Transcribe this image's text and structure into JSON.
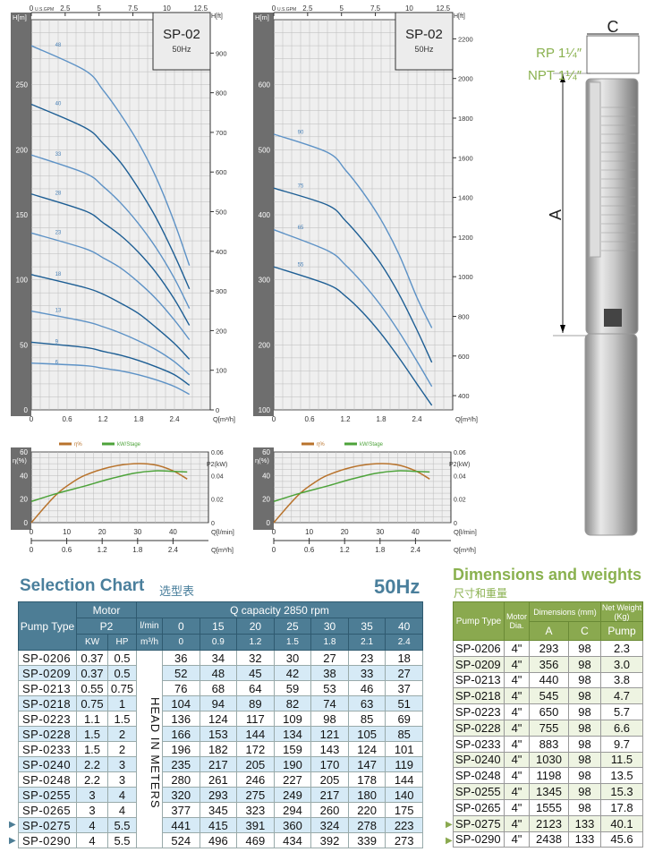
{
  "chart_data": [
    {
      "type": "line",
      "title": "SP-02",
      "subtitle": "50Hz",
      "xlabel": "Q[m³/h]",
      "ylabel": "H[m]",
      "y2label": "H[ft]",
      "x2label": "U.S.GPM",
      "xlim": [
        0,
        3
      ],
      "ylim": [
        0,
        300
      ],
      "xticks": [
        0,
        0.6,
        1.2,
        1.8,
        2.4
      ],
      "yticks": [
        0,
        50,
        100,
        150,
        200,
        250
      ],
      "y2ticks": [
        0,
        100,
        200,
        300,
        400,
        500,
        600,
        700,
        800,
        900
      ],
      "x2ticks": [
        0,
        2.5,
        5,
        7.5,
        10,
        12.5
      ],
      "grid": true,
      "series": [
        {
          "name": "48",
          "x": [
            0,
            0.9,
            1.2,
            1.5,
            1.8,
            2.1,
            2.4,
            2.65
          ],
          "y": [
            280,
            261,
            246,
            227,
            205,
            178,
            144,
            111
          ]
        },
        {
          "name": "40",
          "x": [
            0,
            0.9,
            1.2,
            1.5,
            1.8,
            2.1,
            2.4,
            2.65
          ],
          "y": [
            235,
            217,
            205,
            190,
            170,
            147,
            119,
            93
          ]
        },
        {
          "name": "33",
          "x": [
            0,
            0.9,
            1.2,
            1.5,
            1.8,
            2.1,
            2.4,
            2.65
          ],
          "y": [
            196,
            182,
            172,
            159,
            143,
            124,
            101,
            78
          ]
        },
        {
          "name": "28",
          "x": [
            0,
            0.9,
            1.2,
            1.5,
            1.8,
            2.1,
            2.4,
            2.65
          ],
          "y": [
            166,
            153,
            144,
            134,
            121,
            105,
            85,
            65
          ]
        },
        {
          "name": "23",
          "x": [
            0,
            0.9,
            1.2,
            1.5,
            1.8,
            2.1,
            2.4,
            2.65
          ],
          "y": [
            136,
            124,
            117,
            109,
            98,
            85,
            69,
            54
          ]
        },
        {
          "name": "18",
          "x": [
            0,
            0.9,
            1.2,
            1.5,
            1.8,
            2.1,
            2.4,
            2.65
          ],
          "y": [
            104,
            94,
            89,
            82,
            74,
            63,
            51,
            39
          ]
        },
        {
          "name": "13",
          "x": [
            0,
            0.9,
            1.2,
            1.5,
            1.8,
            2.1,
            2.4,
            2.65
          ],
          "y": [
            76,
            68,
            64,
            59,
            53,
            46,
            37,
            27
          ]
        },
        {
          "name": "9",
          "x": [
            0,
            0.9,
            1.2,
            1.5,
            1.8,
            2.1,
            2.4,
            2.65
          ],
          "y": [
            52,
            48,
            45,
            42,
            38,
            33,
            27,
            19
          ]
        },
        {
          "name": "6",
          "x": [
            0,
            0.9,
            1.2,
            1.5,
            1.8,
            2.1,
            2.4,
            2.65
          ],
          "y": [
            36,
            34,
            32,
            30,
            27,
            23,
            18,
            12
          ]
        }
      ]
    },
    {
      "type": "line",
      "title": "SP-02",
      "subtitle": "50Hz",
      "xlabel": "Q[m³/h]",
      "ylabel": "H[m]",
      "y2label": "H[ft]",
      "x2label": "U.S.GPM",
      "xlim": [
        0,
        3
      ],
      "ylim": [
        100,
        700
      ],
      "xticks": [
        0,
        0.6,
        1.2,
        1.8,
        2.4
      ],
      "yticks": [
        100,
        200,
        300,
        400,
        500,
        600
      ],
      "y2ticks": [
        400,
        600,
        800,
        1000,
        1200,
        1400,
        1600,
        1800,
        2000,
        2200
      ],
      "x2ticks": [
        0,
        2.5,
        5,
        7.5,
        10,
        12.5
      ],
      "grid": true,
      "series": [
        {
          "name": "90",
          "x": [
            0,
            0.9,
            1.2,
            1.5,
            1.8,
            2.1,
            2.4,
            2.65
          ],
          "y": [
            524,
            496,
            469,
            434,
            392,
            339,
            273,
            226
          ]
        },
        {
          "name": "75",
          "x": [
            0,
            0.9,
            1.2,
            1.5,
            1.8,
            2.1,
            2.4,
            2.65
          ],
          "y": [
            441,
            415,
            391,
            360,
            324,
            278,
            223,
            173
          ]
        },
        {
          "name": "65",
          "x": [
            0,
            0.9,
            1.2,
            1.5,
            1.8,
            2.1,
            2.4,
            2.65
          ],
          "y": [
            377,
            345,
            323,
            294,
            260,
            220,
            175,
            136
          ]
        },
        {
          "name": "55",
          "x": [
            0,
            0.9,
            1.2,
            1.5,
            1.8,
            2.1,
            2.4,
            2.65
          ],
          "y": [
            320,
            293,
            275,
            249,
            217,
            180,
            140,
            107
          ]
        }
      ]
    },
    {
      "type": "line",
      "xlabel": "Q[l/min]",
      "x2label": "Q[m³/h]",
      "ylabel": "η(%)",
      "y2label": "P2(kW)",
      "xlim": [
        0,
        50
      ],
      "ylim": [
        0,
        60
      ],
      "y2lim": [
        0,
        0.06
      ],
      "xticks": [
        0,
        10,
        20,
        30,
        40
      ],
      "x2ticks": [
        0,
        0.6,
        1.2,
        1.8,
        2.4
      ],
      "yticks": [
        0,
        20,
        40,
        60
      ],
      "y2ticks": [
        0,
        0.02,
        0.04,
        0.06
      ],
      "grid": true,
      "legend": "top",
      "series": [
        {
          "name": "η%",
          "color": "#b8732c",
          "axis": "left",
          "x": [
            0,
            4,
            7.5,
            11,
            15,
            22,
            29,
            35,
            40,
            44
          ],
          "y": [
            0,
            14,
            25,
            33,
            40,
            47,
            50,
            49,
            44,
            37
          ]
        },
        {
          "name": "kW/Stage",
          "color": "#4da33a",
          "axis": "right",
          "x": [
            0,
            7.5,
            15,
            22,
            29,
            35,
            40,
            44
          ],
          "y": [
            0.018,
            0.025,
            0.031,
            0.037,
            0.042,
            0.044,
            0.0435,
            0.043
          ]
        }
      ]
    },
    {
      "type": "line",
      "xlabel": "Q[l/min]",
      "x2label": "Q[m³/h]",
      "ylabel": "η(%)",
      "y2label": "P2(kW)",
      "xlim": [
        0,
        50
      ],
      "ylim": [
        0,
        60
      ],
      "y2lim": [
        0,
        0.06
      ],
      "xticks": [
        0,
        10,
        20,
        30,
        40
      ],
      "x2ticks": [
        0,
        0.6,
        1.2,
        1.8,
        2.4
      ],
      "yticks": [
        0,
        20,
        40,
        60
      ],
      "y2ticks": [
        0,
        0.02,
        0.04,
        0.06
      ],
      "grid": true,
      "legend": "top",
      "series": [
        {
          "name": "η%",
          "color": "#b8732c",
          "axis": "left",
          "x": [
            0,
            4,
            7.5,
            11,
            15,
            22,
            29,
            35,
            40,
            44
          ],
          "y": [
            0,
            14,
            25,
            33,
            40,
            47,
            50,
            49,
            44,
            37
          ]
        },
        {
          "name": "kW/Stage",
          "color": "#4da33a",
          "axis": "right",
          "x": [
            0,
            7.5,
            15,
            22,
            29,
            35,
            40,
            44
          ],
          "y": [
            0.018,
            0.025,
            0.031,
            0.037,
            0.042,
            0.044,
            0.0435,
            0.043
          ]
        }
      ]
    }
  ],
  "colors": {
    "curve_light": "#5d92c6",
    "curve_dark": "#1d5e94",
    "selection_header": "#4d7d95",
    "dimensions_header": "#8aa94f",
    "title_blue": "#4a7f9c",
    "title_green": "#8ab14f"
  },
  "pump": {
    "connection_rp": "RP 1¼″",
    "connection_npt": "NPT 1¼″",
    "dim_a": "A",
    "dim_c": "C"
  },
  "selection": {
    "title": "Selection Chart",
    "title_cn": "选型表",
    "frequency": "50Hz",
    "h_pump_type": "Pump Type",
    "h_motor": "Motor",
    "h_p2": "P2",
    "h_kw": "KW",
    "h_hp": "HP",
    "h_q": "Q capacity  2850 rpm",
    "h_lmin": "l/min",
    "h_m3h": "m³/h",
    "lmin": [
      "0",
      "15",
      "20",
      "25",
      "30",
      "35",
      "40"
    ],
    "m3h": [
      "0",
      "0.9",
      "1.2",
      "1.5",
      "1.8",
      "2.1",
      "2.4"
    ],
    "head_label": "HEAD IN METERS",
    "rows": [
      {
        "type": "SP-0206",
        "kw": "0.37",
        "hp": "0.5",
        "h": [
          "36",
          "34",
          "32",
          "30",
          "27",
          "23",
          "18"
        ]
      },
      {
        "type": "SP-0209",
        "kw": "0.37",
        "hp": "0.5",
        "h": [
          "52",
          "48",
          "45",
          "42",
          "38",
          "33",
          "27"
        ]
      },
      {
        "type": "SP-0213",
        "kw": "0.55",
        "hp": "0.75",
        "h": [
          "76",
          "68",
          "64",
          "59",
          "53",
          "46",
          "37"
        ]
      },
      {
        "type": "SP-0218",
        "kw": "0.75",
        "hp": "1",
        "h": [
          "104",
          "94",
          "89",
          "82",
          "74",
          "63",
          "51"
        ]
      },
      {
        "type": "SP-0223",
        "kw": "1.1",
        "hp": "1.5",
        "h": [
          "136",
          "124",
          "117",
          "109",
          "98",
          "85",
          "69"
        ]
      },
      {
        "type": "SP-0228",
        "kw": "1.5",
        "hp": "2",
        "h": [
          "166",
          "153",
          "144",
          "134",
          "121",
          "105",
          "85"
        ]
      },
      {
        "type": "SP-0233",
        "kw": "1.5",
        "hp": "2",
        "h": [
          "196",
          "182",
          "172",
          "159",
          "143",
          "124",
          "101"
        ]
      },
      {
        "type": "SP-0240",
        "kw": "2.2",
        "hp": "3",
        "h": [
          "235",
          "217",
          "205",
          "190",
          "170",
          "147",
          "119"
        ]
      },
      {
        "type": "SP-0248",
        "kw": "2.2",
        "hp": "3",
        "h": [
          "280",
          "261",
          "246",
          "227",
          "205",
          "178",
          "144"
        ]
      },
      {
        "type": "SP-0255",
        "kw": "3",
        "hp": "4",
        "h": [
          "320",
          "293",
          "275",
          "249",
          "217",
          "180",
          "140"
        ]
      },
      {
        "type": "SP-0265",
        "kw": "3",
        "hp": "4",
        "h": [
          "377",
          "345",
          "323",
          "294",
          "260",
          "220",
          "175"
        ]
      },
      {
        "type": "SP-0275",
        "kw": "4",
        "hp": "5.5",
        "h": [
          "441",
          "415",
          "391",
          "360",
          "324",
          "278",
          "223"
        ],
        "marked": true
      },
      {
        "type": "SP-0290",
        "kw": "4",
        "hp": "5.5",
        "h": [
          "524",
          "496",
          "469",
          "434",
          "392",
          "339",
          "273"
        ],
        "marked": true
      }
    ]
  },
  "dimensions": {
    "title": "Dimensions and weights",
    "title_cn": "尺寸和重量",
    "h_pump_type": "Pump  Type",
    "h_motor": "Motor Dia.",
    "h_dims": "Dimensions (mm)",
    "h_weight": "Net Weight (Kg)",
    "h_a": "A",
    "h_c": "C",
    "h_pump": "Pump",
    "rows": [
      {
        "type": "SP-0206",
        "dia": "4\"",
        "a": "293",
        "c": "98",
        "w": "2.3"
      },
      {
        "type": "SP-0209",
        "dia": "4\"",
        "a": "356",
        "c": "98",
        "w": "3.0"
      },
      {
        "type": "SP-0213",
        "dia": "4\"",
        "a": "440",
        "c": "98",
        "w": "3.8"
      },
      {
        "type": "SP-0218",
        "dia": "4\"",
        "a": "545",
        "c": "98",
        "w": "4.7"
      },
      {
        "type": "SP-0223",
        "dia": "4\"",
        "a": "650",
        "c": "98",
        "w": "5.7"
      },
      {
        "type": "SP-0228",
        "dia": "4\"",
        "a": "755",
        "c": "98",
        "w": "6.6"
      },
      {
        "type": "SP-0233",
        "dia": "4\"",
        "a": "883",
        "c": "98",
        "w": "9.7"
      },
      {
        "type": "SP-0240",
        "dia": "4\"",
        "a": "1030",
        "c": "98",
        "w": "11.5"
      },
      {
        "type": "SP-0248",
        "dia": "4\"",
        "a": "1198",
        "c": "98",
        "w": "13.5"
      },
      {
        "type": "SP-0255",
        "dia": "4\"",
        "a": "1345",
        "c": "98",
        "w": "15.3"
      },
      {
        "type": "SP-0265",
        "dia": "4\"",
        "a": "1555",
        "c": "98",
        "w": "17.8"
      },
      {
        "type": "SP-0275",
        "dia": "4\"",
        "a": "2123",
        "c": "133",
        "w": "40.1",
        "marked": true
      },
      {
        "type": "SP-0290",
        "dia": "4\"",
        "a": "2438",
        "c": "133",
        "w": "45.6",
        "marked": true
      }
    ]
  }
}
